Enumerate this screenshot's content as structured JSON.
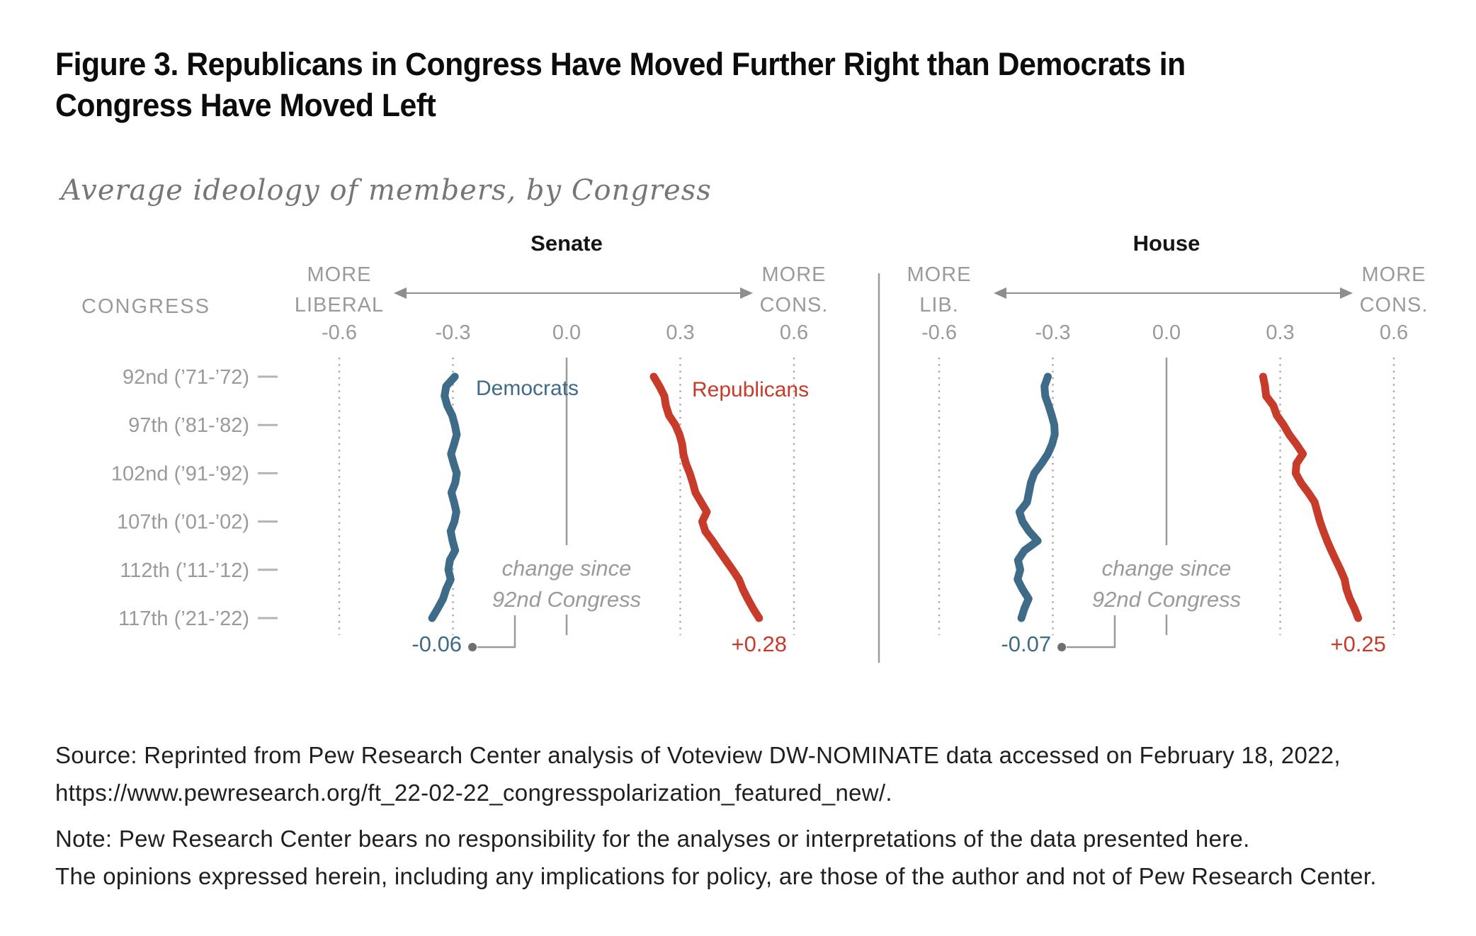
{
  "title": {
    "line1": "Figure 3. Republicans in Congress Have Moved Further Right than Democrats in",
    "line2": "Congress Have Moved Left"
  },
  "subtitle": "Average ideology of members, by Congress",
  "colors": {
    "democrat": "#3e6c88",
    "republican": "#c63b2a",
    "axis_text_gray": "#9a9a9a",
    "grid_dot_gray": "#a8a8a8",
    "axis_line_gray": "#9b9b9b",
    "arrow_gray": "#8e8e8e",
    "annotation_dot_gray": "#6f6f6f",
    "row_tick_gray": "#b4b4b4",
    "panel_title_black": "#151515"
  },
  "congress_axis": {
    "header": "CONGRESS",
    "rows": [
      {
        "congress": 92,
        "label": "92nd (’71-’72)"
      },
      {
        "congress": 97,
        "label": "97th (’81-’82)"
      },
      {
        "congress": 102,
        "label": "102nd (’91-’92)"
      },
      {
        "congress": 107,
        "label": "107th (’01-’02)"
      },
      {
        "congress": 112,
        "label": "112th (’11-’12)"
      },
      {
        "congress": 117,
        "label": "117th (’21-’22)"
      }
    ]
  },
  "x_axis": {
    "tick_labels": [
      "-0.6",
      "-0.3",
      "0.0",
      "0.3",
      "0.6"
    ]
  },
  "panels": [
    {
      "left_label": [
        "MORE",
        "LIBERAL"
      ],
      "right_label": [
        "MORE",
        "CONS."
      ],
      "annotation": [
        "change since",
        "92nd Congress"
      ],
      "show_series_labels": true
    },
    {
      "left_label": [
        "MORE",
        "LIB."
      ],
      "right_label": [
        "MORE",
        "CONS."
      ],
      "annotation": [
        "change since",
        "92nd Congress"
      ],
      "show_series_labels": false
    }
  ],
  "chart_data": [
    {
      "type": "line",
      "title": "Senate",
      "x_name": "congress",
      "x_range": [
        92,
        117
      ],
      "value_axis": {
        "range": [
          -0.6,
          0.6
        ],
        "ticks": [
          -0.6,
          -0.3,
          0.0,
          0.3,
          0.6
        ]
      },
      "series": [
        {
          "name": "Democrats",
          "color": "#3e6c88",
          "values": [
            -0.295,
            -0.318,
            -0.322,
            -0.315,
            -0.302,
            -0.295,
            -0.29,
            -0.297,
            -0.305,
            -0.298,
            -0.29,
            -0.294,
            -0.304,
            -0.297,
            -0.291,
            -0.296,
            -0.306,
            -0.301,
            -0.294,
            -0.308,
            -0.312,
            -0.306,
            -0.318,
            -0.326,
            -0.34,
            -0.355
          ]
        },
        {
          "name": "Republicans",
          "color": "#c63b2a",
          "values": [
            0.23,
            0.245,
            0.258,
            0.262,
            0.27,
            0.287,
            0.298,
            0.305,
            0.308,
            0.315,
            0.325,
            0.333,
            0.34,
            0.355,
            0.37,
            0.358,
            0.366,
            0.385,
            0.402,
            0.42,
            0.438,
            0.455,
            0.465,
            0.478,
            0.492,
            0.508
          ]
        }
      ],
      "change_since_92nd": {
        "democrats": "-0.06",
        "republicans": "+0.28"
      }
    },
    {
      "type": "line",
      "title": "House",
      "x_name": "congress",
      "x_range": [
        92,
        117
      ],
      "value_axis": {
        "range": [
          -0.6,
          0.6
        ],
        "ticks": [
          -0.6,
          -0.3,
          0.0,
          0.3,
          0.6
        ]
      },
      "series": [
        {
          "name": "Democrats",
          "color": "#3e6c88",
          "values": [
            -0.313,
            -0.322,
            -0.32,
            -0.311,
            -0.303,
            -0.296,
            -0.295,
            -0.302,
            -0.313,
            -0.33,
            -0.349,
            -0.358,
            -0.363,
            -0.368,
            -0.388,
            -0.38,
            -0.363,
            -0.34,
            -0.375,
            -0.392,
            -0.386,
            -0.393,
            -0.38,
            -0.364,
            -0.375,
            -0.383
          ]
        },
        {
          "name": "Republicans",
          "color": "#c63b2a",
          "values": [
            0.255,
            0.26,
            0.263,
            0.282,
            0.291,
            0.309,
            0.324,
            0.343,
            0.36,
            0.343,
            0.341,
            0.355,
            0.374,
            0.391,
            0.398,
            0.405,
            0.414,
            0.424,
            0.435,
            0.447,
            0.459,
            0.47,
            0.475,
            0.484,
            0.496,
            0.506
          ]
        }
      ],
      "change_since_92nd": {
        "democrats": "-0.07",
        "republicans": "+0.25"
      }
    }
  ],
  "source": {
    "line1": "Source: Reprinted from Pew Research Center analysis of Voteview DW-NOMINATE data accessed on February 18, 2022,",
    "line2": "https://www.pewresearch.org/ft_22-02-22_congresspolarization_featured_new/."
  },
  "note": {
    "line1": "Note: Pew Research Center bears no responsibility for the analyses or interpretations of the data presented here.",
    "line2": "The opinions expressed herein, including any implications for policy, are those of the author and not of Pew Research Center."
  }
}
